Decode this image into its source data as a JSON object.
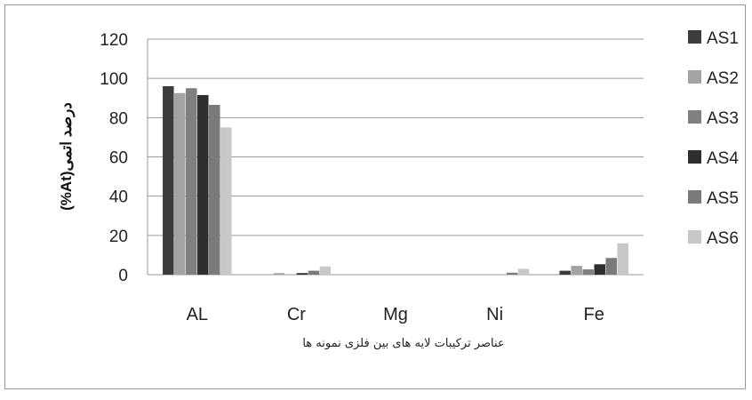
{
  "chart_data": {
    "type": "bar",
    "title": "",
    "xlabel": "عناصر ترکیبات لایه های بین فلزی نمونه ها",
    "ylabel": "(%At)درصد اتمی",
    "ylim": [
      0,
      120
    ],
    "yticks": [
      "0",
      "20",
      "40",
      "60",
      "80",
      "100",
      "120"
    ],
    "grid": true,
    "legend_position": "right",
    "categories": [
      "AL",
      "Cr",
      "Mg",
      "Ni",
      "Fe"
    ],
    "series": [
      {
        "name": "AS1",
        "color": "#3c3c3c",
        "values": [
          96,
          0,
          0,
          0,
          2
        ]
      },
      {
        "name": "AS2",
        "color": "#a3a3a3",
        "values": [
          92.5,
          0.8,
          0,
          0,
          4.5
        ]
      },
      {
        "name": "AS3",
        "color": "#808080",
        "values": [
          95,
          0,
          0,
          0,
          2.7
        ]
      },
      {
        "name": "AS4",
        "color": "#2e2e2e",
        "values": [
          91.5,
          0.8,
          0,
          0,
          5.3
        ]
      },
      {
        "name": "AS5",
        "color": "#7a7a7a",
        "values": [
          86.5,
          2,
          0,
          1,
          8.5
        ]
      },
      {
        "name": "AS6",
        "color": "#c8c8c8",
        "values": [
          75,
          4.2,
          0,
          3,
          16
        ]
      }
    ]
  }
}
